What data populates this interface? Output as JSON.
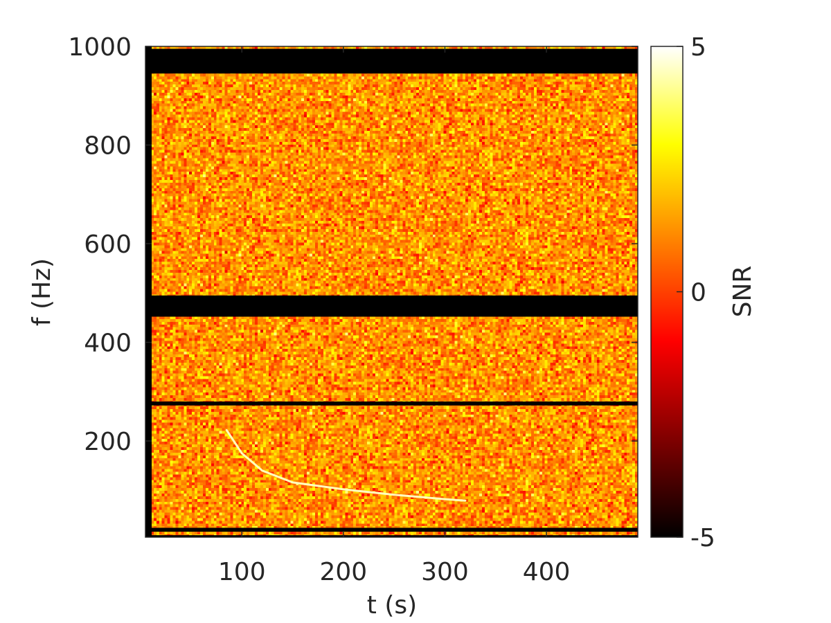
{
  "chart_data": {
    "type": "heatmap",
    "title": "",
    "xlabel": "t (s)",
    "ylabel": "f (Hz)",
    "xlim": [
      5,
      490
    ],
    "ylim": [
      5,
      1000
    ],
    "x_ticks": [
      100,
      200,
      300,
      400
    ],
    "x_tick_labels": [
      "100",
      "200",
      "300",
      "400"
    ],
    "y_ticks": [
      200,
      400,
      600,
      800,
      1000
    ],
    "y_tick_labels": [
      "200",
      "400",
      "600",
      "800",
      "1000"
    ],
    "colorbar": {
      "label": "SNR",
      "range": [
        -5,
        5
      ],
      "ticks": [
        -5,
        0,
        5
      ],
      "tick_labels": [
        "-5",
        "0",
        "5"
      ],
      "colormap": "hot",
      "colors": [
        "#000000",
        "#800000",
        "#ff0000",
        "#ff8000",
        "#ffff00",
        "#ffffff"
      ]
    },
    "grid": false,
    "background": "random noise, SNR roughly -1 to 4 (orange/red/yellow speckle)",
    "masked_bands_hz": [
      [
        945,
        995
      ],
      [
        452,
        495
      ],
      [
        272,
        280
      ],
      [
        16,
        24
      ],
      [
        5,
        9
      ]
    ],
    "track": {
      "name": "",
      "t": [
        85,
        100,
        120,
        150,
        200,
        250,
        300,
        320
      ],
      "f": [
        222,
        175,
        140,
        116,
        102,
        91,
        82,
        79
      ],
      "snr": 4.5
    }
  }
}
